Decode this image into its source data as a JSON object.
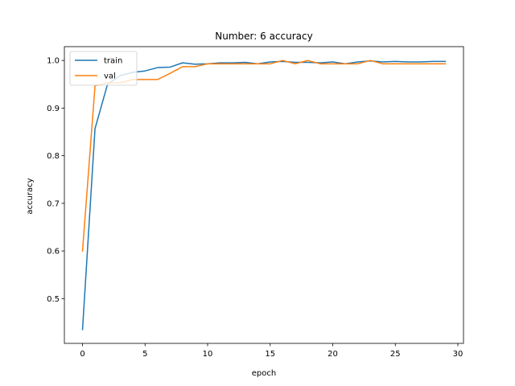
{
  "chart_data": {
    "type": "line",
    "title": "Number: 6 accuracy",
    "xlabel": "epoch",
    "ylabel": "accuracy",
    "xlim": [
      -1.45,
      30.45
    ],
    "ylim": [
      0.406,
      1.029
    ],
    "xticks": [
      0,
      5,
      10,
      15,
      20,
      25,
      30
    ],
    "yticks": [
      0.5,
      0.6,
      0.7,
      0.8,
      0.9,
      1.0
    ],
    "yticks_labels": [
      "0.5",
      "0.6",
      "0.7",
      "0.8",
      "0.9",
      "1.0"
    ],
    "grid": false,
    "legend_position": "upper-left",
    "x": [
      0,
      1,
      2,
      3,
      4,
      5,
      6,
      7,
      8,
      9,
      10,
      11,
      12,
      13,
      14,
      15,
      16,
      17,
      18,
      19,
      20,
      21,
      22,
      23,
      24,
      25,
      26,
      27,
      28,
      29
    ],
    "series": [
      {
        "name": "train",
        "color": "#1f77b4",
        "values": [
          0.435,
          0.857,
          0.95,
          0.968,
          0.975,
          0.978,
          0.985,
          0.986,
          0.995,
          0.992,
          0.993,
          0.995,
          0.995,
          0.996,
          0.993,
          0.997,
          0.998,
          0.996,
          0.996,
          0.995,
          0.997,
          0.993,
          0.997,
          0.999,
          0.997,
          0.998,
          0.997,
          0.997,
          0.998,
          0.998
        ]
      },
      {
        "name": "val",
        "color": "#ff7f0e",
        "values": [
          0.6,
          0.947,
          0.953,
          0.953,
          0.96,
          0.96,
          0.96,
          0.973,
          0.987,
          0.987,
          0.993,
          0.993,
          0.993,
          0.993,
          0.993,
          0.993,
          1.0,
          0.993,
          1.0,
          0.993,
          0.993,
          0.993,
          0.993,
          1.0,
          0.993,
          0.993,
          0.993,
          0.993,
          0.993,
          0.993
        ]
      }
    ]
  }
}
